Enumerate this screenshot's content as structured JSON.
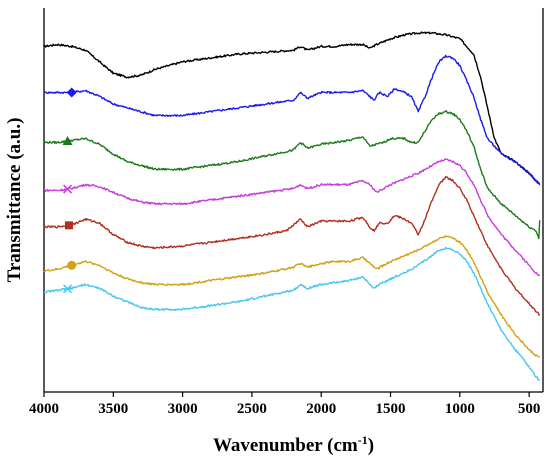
{
  "chart_data": {
    "type": "line",
    "title": "",
    "xlabel_main": "Wavenumber (cm",
    "xlabel_sup": "-1",
    "xlabel_end": ")",
    "ylabel": "Transmittance (a.u.)",
    "xlim": [
      4000,
      400
    ],
    "x_reversed": true,
    "yticks_shown": false,
    "grid": false,
    "x_tick_values": [
      4000,
      3500,
      3000,
      2500,
      2000,
      1500,
      1000,
      500
    ],
    "x_tick_labels": [
      "4000",
      "3500",
      "3000",
      "2500",
      "2000",
      "1500",
      "1000",
      "500"
    ],
    "series": [
      {
        "color": "#000000",
        "marker": "none",
        "points": [
          [
            4000,
            90
          ],
          [
            3900,
            90.5
          ],
          [
            3800,
            90
          ],
          [
            3700,
            89
          ],
          [
            3600,
            86
          ],
          [
            3500,
            83
          ],
          [
            3400,
            82
          ],
          [
            3300,
            82.5
          ],
          [
            3200,
            84
          ],
          [
            3000,
            86
          ],
          [
            2800,
            87
          ],
          [
            2600,
            88
          ],
          [
            2400,
            88.5
          ],
          [
            2200,
            89
          ],
          [
            2150,
            90
          ],
          [
            2100,
            89
          ],
          [
            2000,
            90
          ],
          [
            1900,
            90
          ],
          [
            1800,
            90.5
          ],
          [
            1700,
            90.5
          ],
          [
            1650,
            89.5
          ],
          [
            1600,
            90.5
          ],
          [
            1500,
            92
          ],
          [
            1400,
            93
          ],
          [
            1300,
            93.5
          ],
          [
            1200,
            93.5
          ],
          [
            1100,
            93
          ],
          [
            1000,
            92
          ],
          [
            900,
            88
          ],
          [
            850,
            82
          ],
          [
            800,
            74
          ],
          [
            750,
            66
          ],
          [
            700,
            62
          ],
          [
            600,
            60
          ],
          [
            550,
            58.5
          ],
          [
            500,
            57
          ],
          [
            450,
            55
          ],
          [
            420,
            54
          ]
        ]
      },
      {
        "color": "#1a1aee",
        "marker": "diamond",
        "marker_x": 3800,
        "points": [
          [
            4000,
            78
          ],
          [
            3900,
            78
          ],
          [
            3800,
            78
          ],
          [
            3700,
            78.5
          ],
          [
            3600,
            77
          ],
          [
            3500,
            75
          ],
          [
            3400,
            74
          ],
          [
            3300,
            73
          ],
          [
            3200,
            72
          ],
          [
            3000,
            72
          ],
          [
            2800,
            73
          ],
          [
            2600,
            74
          ],
          [
            2400,
            75
          ],
          [
            2200,
            76
          ],
          [
            2150,
            78
          ],
          [
            2100,
            76.5
          ],
          [
            2000,
            78
          ],
          [
            1900,
            78
          ],
          [
            1800,
            78
          ],
          [
            1700,
            78.5
          ],
          [
            1650,
            77
          ],
          [
            1620,
            76
          ],
          [
            1580,
            78
          ],
          [
            1520,
            77
          ],
          [
            1470,
            79
          ],
          [
            1400,
            78
          ],
          [
            1350,
            77
          ],
          [
            1300,
            73
          ],
          [
            1250,
            77
          ],
          [
            1200,
            82
          ],
          [
            1150,
            86
          ],
          [
            1100,
            87.5
          ],
          [
            1050,
            87
          ],
          [
            1000,
            85
          ],
          [
            950,
            81
          ],
          [
            900,
            77
          ],
          [
            850,
            71
          ],
          [
            800,
            66
          ],
          [
            700,
            62
          ],
          [
            600,
            60
          ],
          [
            550,
            58.5
          ],
          [
            500,
            57
          ],
          [
            450,
            55
          ],
          [
            420,
            54
          ]
        ]
      },
      {
        "color": "#1c7a1c",
        "marker": "triangle",
        "marker_x": 3830,
        "points": [
          [
            4000,
            65
          ],
          [
            3900,
            65
          ],
          [
            3800,
            65.5
          ],
          [
            3700,
            66
          ],
          [
            3600,
            64.5
          ],
          [
            3500,
            62
          ],
          [
            3400,
            60
          ],
          [
            3300,
            59
          ],
          [
            3200,
            58
          ],
          [
            3000,
            58
          ],
          [
            2800,
            59
          ],
          [
            2600,
            60
          ],
          [
            2400,
            61.5
          ],
          [
            2200,
            63
          ],
          [
            2150,
            65
          ],
          [
            2100,
            63.5
          ],
          [
            2000,
            64.5
          ],
          [
            1900,
            65
          ],
          [
            1800,
            65.5
          ],
          [
            1700,
            66.5
          ],
          [
            1650,
            64
          ],
          [
            1600,
            64.5
          ],
          [
            1550,
            65
          ],
          [
            1500,
            66
          ],
          [
            1400,
            66
          ],
          [
            1350,
            65
          ],
          [
            1300,
            65
          ],
          [
            1250,
            68
          ],
          [
            1200,
            71
          ],
          [
            1150,
            72.5
          ],
          [
            1100,
            73
          ],
          [
            1050,
            72.5
          ],
          [
            1000,
            71
          ],
          [
            950,
            68
          ],
          [
            900,
            64
          ],
          [
            850,
            58
          ],
          [
            800,
            53
          ],
          [
            700,
            49
          ],
          [
            600,
            46
          ],
          [
            550,
            44.5
          ],
          [
            500,
            43
          ],
          [
            450,
            42
          ],
          [
            430,
            40
          ],
          [
            420,
            48
          ]
        ]
      },
      {
        "color": "#c83cdc",
        "marker": "x",
        "marker_x": 3830,
        "points": [
          [
            4000,
            52.5
          ],
          [
            3900,
            52.5
          ],
          [
            3800,
            53
          ],
          [
            3700,
            54
          ],
          [
            3600,
            53.5
          ],
          [
            3500,
            52
          ],
          [
            3400,
            50.5
          ],
          [
            3300,
            49.5
          ],
          [
            3200,
            49
          ],
          [
            3000,
            49
          ],
          [
            2800,
            50
          ],
          [
            2600,
            51
          ],
          [
            2400,
            52
          ],
          [
            2200,
            53
          ],
          [
            2150,
            54
          ],
          [
            2100,
            53
          ],
          [
            2000,
            54
          ],
          [
            1900,
            54
          ],
          [
            1800,
            54
          ],
          [
            1700,
            55
          ],
          [
            1650,
            54
          ],
          [
            1600,
            52
          ],
          [
            1550,
            53
          ],
          [
            1500,
            54
          ],
          [
            1400,
            55.5
          ],
          [
            1300,
            57
          ],
          [
            1200,
            59
          ],
          [
            1150,
            60
          ],
          [
            1100,
            60.5
          ],
          [
            1050,
            60
          ],
          [
            1000,
            59
          ],
          [
            950,
            57
          ],
          [
            900,
            54
          ],
          [
            850,
            50
          ],
          [
            800,
            46
          ],
          [
            700,
            41
          ],
          [
            600,
            37
          ],
          [
            550,
            35
          ],
          [
            500,
            33
          ],
          [
            450,
            31
          ],
          [
            420,
            30
          ]
        ]
      },
      {
        "color": "#b03020",
        "marker": "square",
        "marker_x": 3820,
        "points": [
          [
            4000,
            43
          ],
          [
            3900,
            43
          ],
          [
            3800,
            43.5
          ],
          [
            3700,
            45
          ],
          [
            3600,
            44
          ],
          [
            3500,
            41
          ],
          [
            3400,
            39
          ],
          [
            3300,
            38
          ],
          [
            3200,
            37.5
          ],
          [
            3000,
            38
          ],
          [
            2800,
            39
          ],
          [
            2600,
            40
          ],
          [
            2400,
            41
          ],
          [
            2250,
            42
          ],
          [
            2150,
            45
          ],
          [
            2100,
            43
          ],
          [
            2000,
            44.5
          ],
          [
            1900,
            44.5
          ],
          [
            1800,
            44.5
          ],
          [
            1700,
            45.5
          ],
          [
            1650,
            43
          ],
          [
            1620,
            42
          ],
          [
            1580,
            44
          ],
          [
            1520,
            44
          ],
          [
            1470,
            46
          ],
          [
            1400,
            45
          ],
          [
            1350,
            44
          ],
          [
            1300,
            41
          ],
          [
            1250,
            45
          ],
          [
            1200,
            50
          ],
          [
            1150,
            54
          ],
          [
            1100,
            56
          ],
          [
            1050,
            55
          ],
          [
            1000,
            53
          ],
          [
            950,
            50
          ],
          [
            900,
            46
          ],
          [
            850,
            42
          ],
          [
            800,
            38
          ],
          [
            700,
            32
          ],
          [
            600,
            27
          ],
          [
            550,
            25
          ],
          [
            500,
            23
          ],
          [
            450,
            21
          ],
          [
            420,
            20
          ]
        ]
      },
      {
        "color": "#d4a017",
        "marker": "circle",
        "marker_x": 3800,
        "points": [
          [
            4000,
            31.5
          ],
          [
            3900,
            32
          ],
          [
            3800,
            33
          ],
          [
            3700,
            34
          ],
          [
            3600,
            33
          ],
          [
            3500,
            31
          ],
          [
            3400,
            29.5
          ],
          [
            3300,
            28.5
          ],
          [
            3200,
            28
          ],
          [
            3000,
            28
          ],
          [
            2800,
            29
          ],
          [
            2600,
            30
          ],
          [
            2400,
            31
          ],
          [
            2200,
            32.5
          ],
          [
            2150,
            33.5
          ],
          [
            2100,
            32.5
          ],
          [
            2000,
            33.5
          ],
          [
            1900,
            34
          ],
          [
            1800,
            34
          ],
          [
            1700,
            35
          ],
          [
            1650,
            33.5
          ],
          [
            1600,
            32
          ],
          [
            1550,
            33
          ],
          [
            1500,
            34
          ],
          [
            1400,
            35.5
          ],
          [
            1300,
            37
          ],
          [
            1200,
            39
          ],
          [
            1150,
            40
          ],
          [
            1100,
            40.5
          ],
          [
            1050,
            40
          ],
          [
            1000,
            39
          ],
          [
            950,
            37
          ],
          [
            900,
            34
          ],
          [
            850,
            30
          ],
          [
            800,
            26
          ],
          [
            700,
            20
          ],
          [
            600,
            15
          ],
          [
            550,
            13
          ],
          [
            500,
            11
          ],
          [
            450,
            9.5
          ],
          [
            420,
            9
          ]
        ]
      },
      {
        "color": "#45c8f0",
        "marker": "asterisk",
        "marker_x": 3830,
        "points": [
          [
            4000,
            26
          ],
          [
            3900,
            26.5
          ],
          [
            3800,
            27
          ],
          [
            3700,
            28
          ],
          [
            3600,
            27
          ],
          [
            3500,
            25
          ],
          [
            3400,
            23.5
          ],
          [
            3300,
            22
          ],
          [
            3200,
            21.5
          ],
          [
            3000,
            21.5
          ],
          [
            2800,
            22.5
          ],
          [
            2600,
            23.5
          ],
          [
            2400,
            25
          ],
          [
            2200,
            26.5
          ],
          [
            2150,
            28
          ],
          [
            2100,
            27
          ],
          [
            2000,
            28
          ],
          [
            1900,
            28.5
          ],
          [
            1800,
            29
          ],
          [
            1700,
            30
          ],
          [
            1650,
            28
          ],
          [
            1620,
            27
          ],
          [
            1580,
            28
          ],
          [
            1500,
            29.5
          ],
          [
            1400,
            31
          ],
          [
            1300,
            33
          ],
          [
            1200,
            35.5
          ],
          [
            1150,
            37
          ],
          [
            1100,
            37.5
          ],
          [
            1050,
            37
          ],
          [
            1000,
            36
          ],
          [
            950,
            34
          ],
          [
            900,
            31
          ],
          [
            850,
            27
          ],
          [
            800,
            23
          ],
          [
            700,
            16
          ],
          [
            600,
            11
          ],
          [
            550,
            9
          ],
          [
            500,
            6.5
          ],
          [
            450,
            4
          ],
          [
            420,
            3
          ]
        ]
      }
    ]
  }
}
